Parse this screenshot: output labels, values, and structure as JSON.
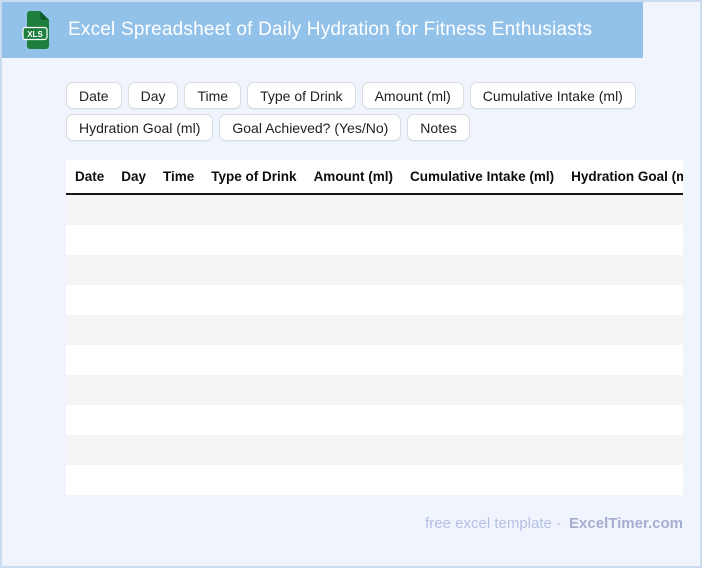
{
  "header": {
    "title": "Excel Spreadsheet of Daily Hydration for Fitness Enthusiasts",
    "file_badge": "XLS"
  },
  "chips": [
    "Date",
    "Day",
    "Time",
    "Type of Drink",
    "Amount (ml)",
    "Cumulative Intake (ml)",
    "Hydration Goal (ml)",
    "Goal Achieved? (Yes/No)",
    "Notes"
  ],
  "table": {
    "columns": [
      "Date",
      "Day",
      "Time",
      "Type of Drink",
      "Amount (ml)",
      "Cumulative Intake (ml)",
      "Hydration Goal (ml)",
      "Goal Achieved? (Yes/No)",
      "Notes"
    ],
    "empty_row_count": 10
  },
  "footer": {
    "text": "free excel template -",
    "brand": "ExcelTimer.com"
  },
  "colors": {
    "banner_blue": "#92c1ea",
    "page_background": "#f0f5fd",
    "icon_green": "#1e7e3e",
    "icon_fold_green": "#0d5e2a",
    "row_stripe": "#f5f5f6",
    "chip_border": "#dadce0",
    "header_rule": "#161616",
    "footer_text": "#b5c0e5",
    "footer_brand": "#a5aed1"
  }
}
